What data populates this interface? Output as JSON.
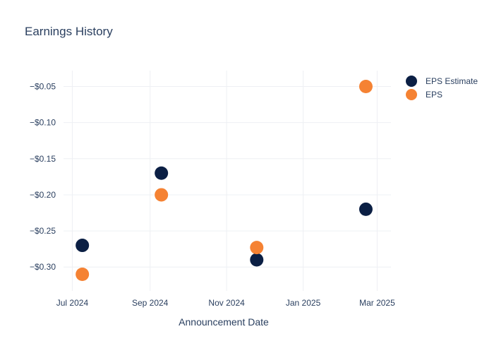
{
  "chart_data": {
    "type": "scatter",
    "title": "Earnings History",
    "xlabel": "Announcement Date",
    "ylabel": "",
    "x_ticks": [
      {
        "date": "2024-07-01",
        "label": "Jul 2024"
      },
      {
        "date": "2024-09-01",
        "label": "Sep 2024"
      },
      {
        "date": "2024-11-01",
        "label": "Nov 2024"
      },
      {
        "date": "2025-01-01",
        "label": "Jan 2025"
      },
      {
        "date": "2025-03-01",
        "label": "Mar 2025"
      }
    ],
    "y_ticks": [
      {
        "value": -0.05,
        "label": "−$0.05"
      },
      {
        "value": -0.1,
        "label": "−$0.10"
      },
      {
        "value": -0.15,
        "label": "−$0.15"
      },
      {
        "value": -0.2,
        "label": "−$0.20"
      },
      {
        "value": -0.25,
        "label": "−$0.25"
      },
      {
        "value": -0.3,
        "label": "−$0.30"
      }
    ],
    "xlim": [
      "2024-06-24",
      "2025-03-12"
    ],
    "ylim": [
      -0.333,
      -0.028
    ],
    "grid": true,
    "legend_position": "top-right",
    "series": [
      {
        "name": "EPS Estimate",
        "color": "#0b1f44",
        "points": [
          {
            "x": "2024-07-09",
            "y": -0.27
          },
          {
            "x": "2024-09-10",
            "y": -0.17
          },
          {
            "x": "2024-11-25",
            "y": -0.29
          },
          {
            "x": "2025-02-20",
            "y": -0.22
          }
        ]
      },
      {
        "name": "EPS",
        "color": "#f58233",
        "points": [
          {
            "x": "2024-07-09",
            "y": -0.31
          },
          {
            "x": "2024-09-10",
            "y": -0.2
          },
          {
            "x": "2024-11-25",
            "y": -0.273
          },
          {
            "x": "2025-02-20",
            "y": -0.05
          }
        ]
      }
    ]
  }
}
